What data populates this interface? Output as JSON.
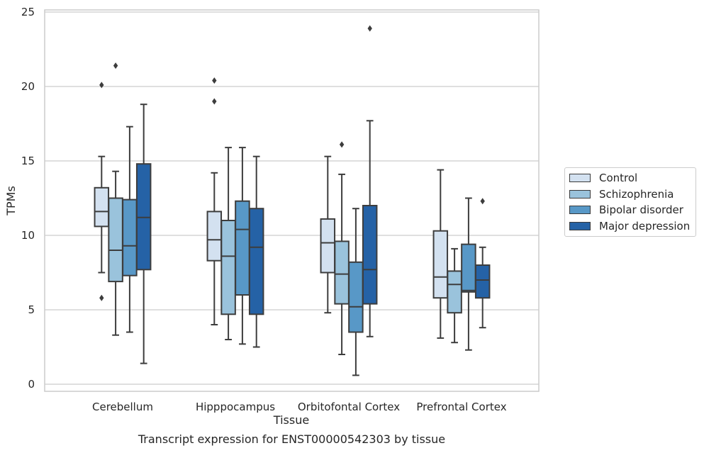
{
  "chart_data": {
    "type": "box",
    "ylabel": "TPMs",
    "xlabel": "Tissue",
    "ylim": [
      -0.5,
      25.2
    ],
    "yticks": [
      0,
      5,
      10,
      15,
      20,
      25
    ],
    "grid": "horizontal",
    "legend_position": "right",
    "categories": [
      "Cerebellum",
      "Hipppocampus",
      "Orbitofontal Cortex",
      "Prefrontal Cortex"
    ],
    "series": [
      {
        "name": "Control",
        "color": "#d3e1f0",
        "boxes": [
          {
            "whislo": 7.5,
            "q1": 10.6,
            "med": 11.6,
            "q3": 13.2,
            "whishi": 15.3,
            "fliers": [
              20.1,
              5.8
            ]
          },
          {
            "whislo": 4.0,
            "q1": 8.3,
            "med": 9.7,
            "q3": 11.6,
            "whishi": 14.2,
            "fliers": [
              20.4,
              19.0
            ]
          },
          {
            "whislo": 4.8,
            "q1": 7.5,
            "med": 9.5,
            "q3": 11.1,
            "whishi": 15.3,
            "fliers": []
          },
          {
            "whislo": 3.1,
            "q1": 5.8,
            "med": 7.2,
            "q3": 10.3,
            "whishi": 14.4,
            "fliers": []
          }
        ]
      },
      {
        "name": "Schizophrenia",
        "color": "#9ac3dc",
        "boxes": [
          {
            "whislo": 3.3,
            "q1": 6.9,
            "med": 9.0,
            "q3": 12.5,
            "whishi": 14.3,
            "fliers": [
              21.4
            ]
          },
          {
            "whislo": 3.0,
            "q1": 4.7,
            "med": 8.6,
            "q3": 11.0,
            "whishi": 15.9,
            "fliers": []
          },
          {
            "whislo": 2.0,
            "q1": 5.4,
            "med": 7.4,
            "q3": 9.6,
            "whishi": 14.1,
            "fliers": [
              16.1
            ]
          },
          {
            "whislo": 2.8,
            "q1": 4.8,
            "med": 6.7,
            "q3": 7.6,
            "whishi": 9.1,
            "fliers": []
          }
        ]
      },
      {
        "name": "Bipolar disorder",
        "color": "#5898c7",
        "boxes": [
          {
            "whislo": 3.5,
            "q1": 7.3,
            "med": 9.3,
            "q3": 12.4,
            "whishi": 17.3,
            "fliers": []
          },
          {
            "whislo": 2.7,
            "q1": 6.0,
            "med": 10.4,
            "q3": 12.3,
            "whishi": 15.9,
            "fliers": []
          },
          {
            "whislo": 0.6,
            "q1": 3.5,
            "med": 5.2,
            "q3": 8.2,
            "whishi": 11.8,
            "fliers": []
          },
          {
            "whislo": 2.3,
            "q1": 6.2,
            "med": 6.3,
            "q3": 9.4,
            "whishi": 12.5,
            "fliers": []
          }
        ]
      },
      {
        "name": "Major depression",
        "color": "#2562a6",
        "boxes": [
          {
            "whislo": 1.4,
            "q1": 7.7,
            "med": 11.2,
            "q3": 14.8,
            "whishi": 18.8,
            "fliers": []
          },
          {
            "whislo": 2.5,
            "q1": 4.7,
            "med": 9.2,
            "q3": 11.8,
            "whishi": 15.3,
            "fliers": []
          },
          {
            "whislo": 3.2,
            "q1": 5.4,
            "med": 7.7,
            "q3": 12.0,
            "whishi": 17.7,
            "fliers": [
              23.9
            ]
          },
          {
            "whislo": 3.8,
            "q1": 5.8,
            "med": 7.0,
            "q3": 8.0,
            "whishi": 9.2,
            "fliers": [
              12.3
            ]
          }
        ]
      }
    ]
  },
  "caption": "Transcript expression for ENST00000542303 by tissue"
}
